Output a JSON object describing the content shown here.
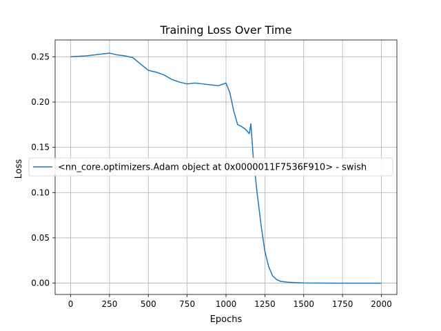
{
  "chart_data": {
    "type": "line",
    "title": "Training Loss Over Time",
    "xlabel": "Epochs",
    "ylabel": "Loss",
    "xlim": [
      -100,
      2100
    ],
    "ylim": [
      -0.0125,
      0.2685
    ],
    "xticks": [
      0,
      250,
      500,
      750,
      1000,
      1250,
      1500,
      1750,
      2000
    ],
    "yticks": [
      0.0,
      0.05,
      0.1,
      0.15,
      0.2,
      0.25
    ],
    "xtick_labels": [
      "0",
      "250",
      "500",
      "750",
      "1000",
      "1250",
      "1500",
      "1750",
      "2000"
    ],
    "ytick_labels": [
      "0.00",
      "0.05",
      "0.10",
      "0.15",
      "0.20",
      "0.25"
    ],
    "grid": true,
    "legend_position": "center-left",
    "series": [
      {
        "name": "<nn_core.optimizers.Adam object at 0x0000011F7536F910> - swish",
        "color": "#1f77b4",
        "x": [
          0,
          100,
          200,
          250,
          300,
          350,
          400,
          450,
          500,
          550,
          600,
          650,
          700,
          750,
          800,
          850,
          900,
          950,
          1000,
          1025,
          1050,
          1075,
          1100,
          1125,
          1150,
          1160,
          1175,
          1200,
          1225,
          1250,
          1275,
          1300,
          1325,
          1350,
          1400,
          1450,
          1500,
          1600,
          1700,
          1800,
          1900,
          2000
        ],
        "y": [
          0.25,
          0.251,
          0.253,
          0.254,
          0.252,
          0.251,
          0.249,
          0.242,
          0.235,
          0.233,
          0.23,
          0.225,
          0.222,
          0.22,
          0.221,
          0.22,
          0.219,
          0.218,
          0.221,
          0.21,
          0.19,
          0.175,
          0.173,
          0.17,
          0.165,
          0.176,
          0.14,
          0.1,
          0.065,
          0.035,
          0.018,
          0.008,
          0.004,
          0.002,
          0.001,
          0.0005,
          0.0002,
          0.0001,
          0.0,
          0.0,
          0.0,
          0.0
        ]
      }
    ]
  }
}
